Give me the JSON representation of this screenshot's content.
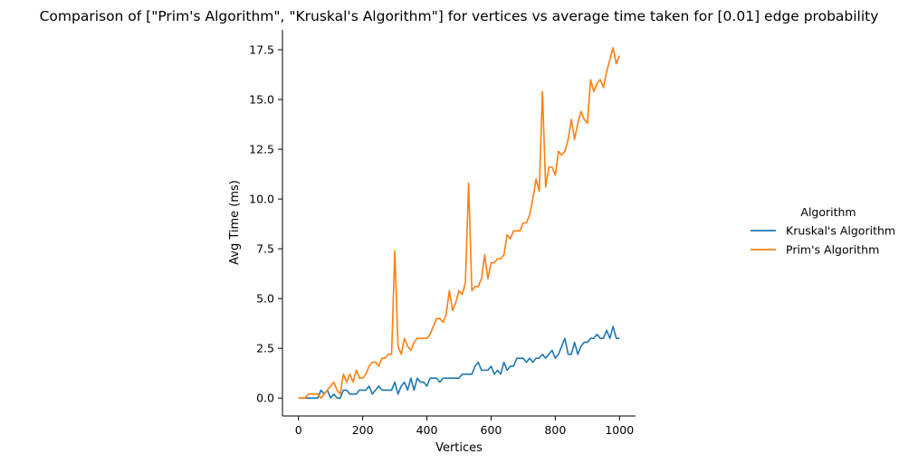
{
  "chart_data": {
    "type": "line",
    "title": "Comparison of [\"Prim's Algorithm\", \"Kruskal's Algorithm\"] for vertices vs average time taken for [0.01] edge probability",
    "xlabel": "Vertices",
    "ylabel": "Avg Time (ms)",
    "xlim": [
      -50,
      1050
    ],
    "ylim": [
      -0.9,
      18.5
    ],
    "xticks": [
      0,
      200,
      400,
      600,
      800,
      1000
    ],
    "yticks": [
      0.0,
      2.5,
      5.0,
      7.5,
      10.0,
      12.5,
      15.0,
      17.5
    ],
    "xtick_labels": [
      "0",
      "200",
      "400",
      "600",
      "800",
      "1000"
    ],
    "ytick_labels": [
      "0.0",
      "2.5",
      "5.0",
      "7.5",
      "10.0",
      "12.5",
      "15.0",
      "17.5"
    ],
    "grid": false,
    "legend": {
      "title": "Algorithm",
      "placement": "right-outside"
    },
    "series": [
      {
        "name": "Kruskal's Algorithm",
        "color": "#1f77b4",
        "x": [
          0,
          10,
          20,
          30,
          40,
          50,
          60,
          70,
          80,
          90,
          100,
          110,
          120,
          130,
          140,
          150,
          160,
          170,
          180,
          190,
          200,
          210,
          220,
          230,
          240,
          250,
          260,
          270,
          280,
          290,
          300,
          310,
          320,
          330,
          340,
          350,
          360,
          370,
          380,
          390,
          400,
          410,
          420,
          430,
          440,
          450,
          460,
          470,
          480,
          490,
          500,
          510,
          520,
          530,
          540,
          550,
          560,
          570,
          580,
          590,
          600,
          610,
          620,
          630,
          640,
          650,
          660,
          670,
          680,
          690,
          700,
          710,
          720,
          730,
          740,
          750,
          760,
          770,
          780,
          790,
          800,
          810,
          820,
          830,
          840,
          850,
          860,
          870,
          880,
          890,
          900,
          910,
          920,
          930,
          940,
          950,
          960,
          970,
          980,
          990,
          1000
        ],
        "y": [
          0,
          0,
          0,
          0,
          0,
          0,
          0,
          0.4,
          0.2,
          0.4,
          0,
          0.2,
          0,
          0,
          0.4,
          0.4,
          0.2,
          0.2,
          0.2,
          0.4,
          0.4,
          0.4,
          0.6,
          0.2,
          0.4,
          0.6,
          0.4,
          0.4,
          0.4,
          0.4,
          0.8,
          0.2,
          0.6,
          0.8,
          0.4,
          1.0,
          0.4,
          1.0,
          0.8,
          0.8,
          0.6,
          1.0,
          1.0,
          1.0,
          0.8,
          1.0,
          1.0,
          1.0,
          1.0,
          1.0,
          1.0,
          1.2,
          1.2,
          1.2,
          1.2,
          1.6,
          1.8,
          1.4,
          1.4,
          1.4,
          1.6,
          1.2,
          1.4,
          1.2,
          1.8,
          1.4,
          1.6,
          1.6,
          2.0,
          2.0,
          2.0,
          1.8,
          2.0,
          1.8,
          2.0,
          2.0,
          2.2,
          2.0,
          2.2,
          2.4,
          2.0,
          2.2,
          2.6,
          3.0,
          2.2,
          2.2,
          2.8,
          2.2,
          2.6,
          2.8,
          2.8,
          3.0,
          3.0,
          3.2,
          3.0,
          3.0,
          3.4,
          3.0,
          3.6,
          3.0,
          3.0
        ]
      },
      {
        "name": "Prim's Algorithm",
        "color": "#ff7f0e",
        "x": [
          0,
          10,
          20,
          30,
          40,
          50,
          60,
          70,
          80,
          90,
          100,
          110,
          120,
          130,
          140,
          150,
          160,
          170,
          180,
          190,
          200,
          210,
          220,
          230,
          240,
          250,
          260,
          270,
          280,
          290,
          300,
          310,
          320,
          330,
          340,
          350,
          360,
          370,
          380,
          390,
          400,
          410,
          420,
          430,
          440,
          450,
          460,
          470,
          480,
          490,
          500,
          510,
          520,
          530,
          540,
          550,
          560,
          570,
          580,
          590,
          600,
          610,
          620,
          630,
          640,
          650,
          660,
          670,
          680,
          690,
          700,
          710,
          720,
          730,
          740,
          750,
          760,
          770,
          780,
          790,
          800,
          810,
          820,
          830,
          840,
          850,
          860,
          870,
          880,
          890,
          900,
          910,
          920,
          930,
          940,
          950,
          960,
          970,
          980,
          990,
          1000
        ],
        "y": [
          0,
          0,
          0,
          0.2,
          0.2,
          0.2,
          0.2,
          0,
          0.2,
          0.4,
          0.6,
          0.8,
          0.4,
          0.2,
          1.2,
          0.8,
          1.2,
          0.8,
          1.4,
          1.0,
          1.0,
          1.2,
          1.6,
          1.8,
          1.8,
          1.6,
          2.0,
          2.0,
          2.2,
          2.2,
          7.4,
          2.6,
          2.2,
          3.0,
          2.6,
          2.4,
          2.8,
          3.0,
          3.0,
          3.0,
          3.0,
          3.2,
          3.6,
          4.0,
          4.0,
          3.8,
          4.2,
          5.4,
          4.4,
          4.8,
          5.4,
          5.2,
          5.8,
          10.8,
          5.4,
          5.6,
          5.6,
          6.0,
          7.2,
          6.0,
          6.8,
          6.8,
          7.0,
          7.0,
          7.2,
          8.2,
          8.0,
          8.4,
          8.4,
          8.4,
          8.8,
          8.8,
          9.2,
          10.0,
          11.0,
          10.4,
          15.4,
          10.6,
          11.6,
          11.6,
          11.2,
          12.4,
          12.2,
          12.4,
          13.0,
          14.0,
          13.0,
          13.8,
          14.4,
          14.0,
          13.8,
          16.0,
          15.4,
          15.8,
          16.0,
          15.6,
          16.4,
          17.0,
          17.6,
          16.8,
          17.2
        ]
      }
    ]
  }
}
